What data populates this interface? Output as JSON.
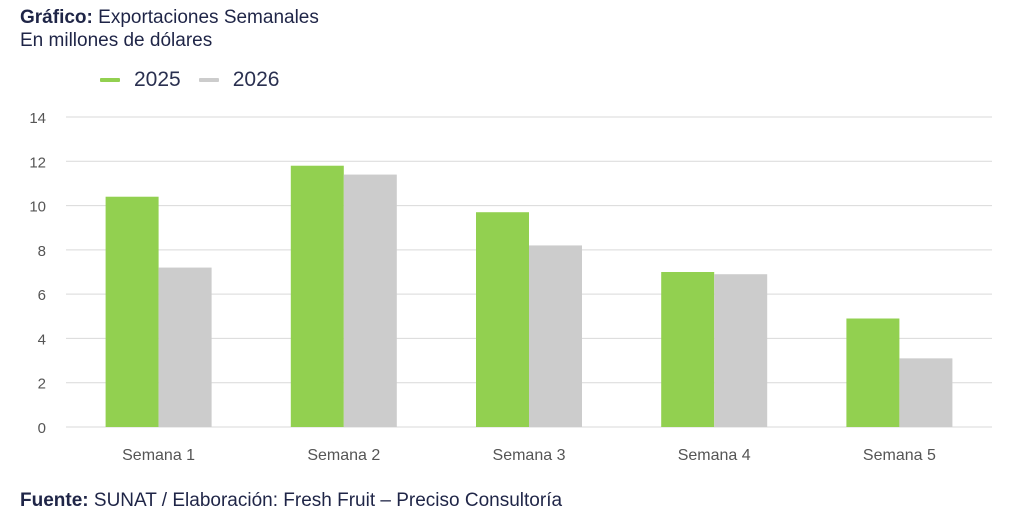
{
  "header": {
    "title_label": "Gráfico:",
    "title_text": "Exportaciones Semanales",
    "subtitle": "En millones de dólares"
  },
  "footer": {
    "source_label": "Fuente:",
    "source_text": "SUNAT / Elaboración: Fresh Fruit – Preciso Consultoría"
  },
  "colors": {
    "series_2025": "#92d050",
    "series_2026": "#cccccc",
    "grid": "#d9d9d9",
    "tick_text": "#555555"
  },
  "chart_data": {
    "type": "bar",
    "title": "Exportaciones Semanales",
    "subtitle": "En millones de dólares",
    "categories": [
      "Semana 1",
      "Semana 2",
      "Semana 3",
      "Semana 4",
      "Semana 5"
    ],
    "series": [
      {
        "name": "2025",
        "values": [
          10.4,
          11.8,
          9.7,
          7.0,
          4.9
        ]
      },
      {
        "name": "2026",
        "values": [
          7.2,
          11.4,
          8.2,
          6.9,
          3.1
        ]
      }
    ],
    "ylim": [
      0,
      14
    ],
    "yticks": [
      0,
      2,
      4,
      6,
      8,
      10,
      12,
      14
    ],
    "xlabel": "",
    "ylabel": "",
    "grid": true,
    "legend_position": "top-left"
  }
}
